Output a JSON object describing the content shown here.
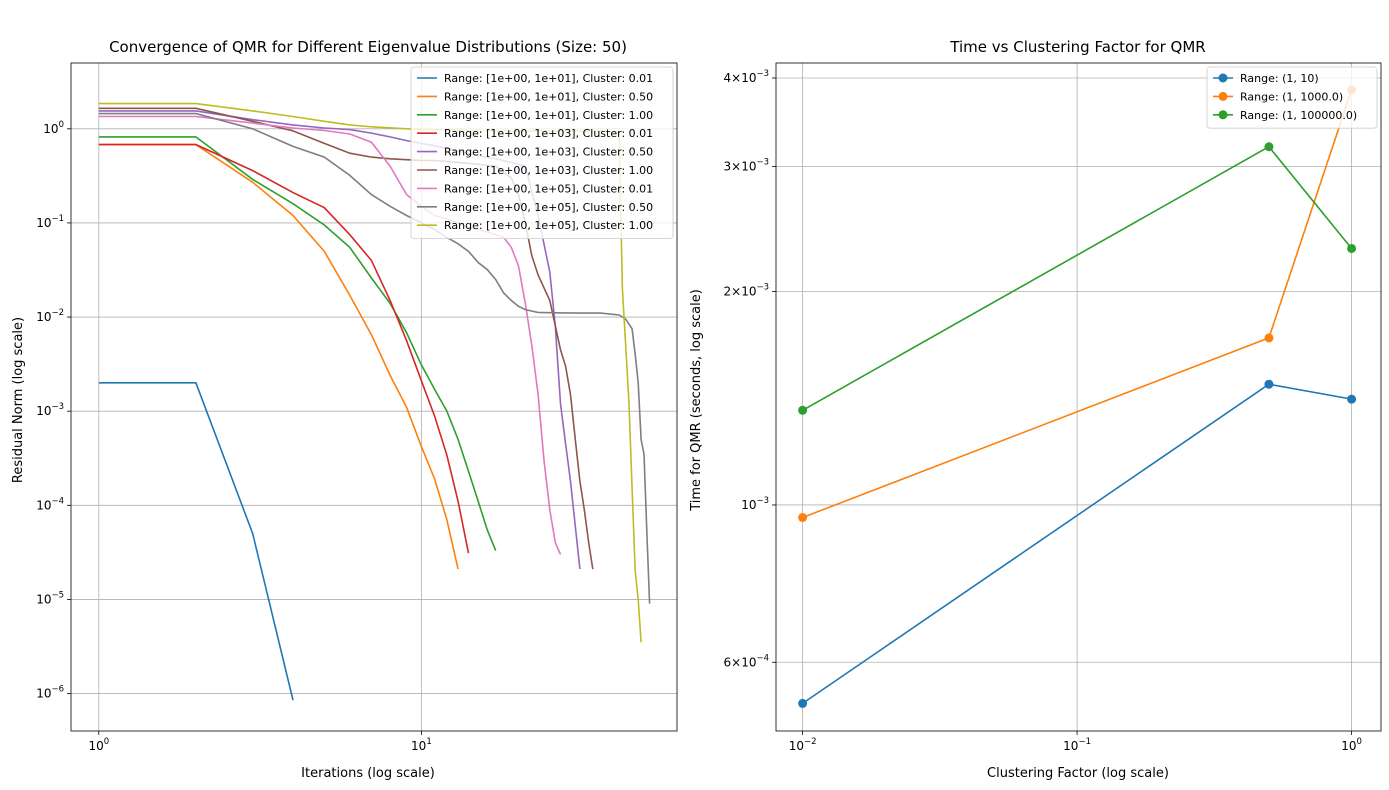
{
  "chart_data": [
    {
      "type": "line",
      "title": "Convergence of QMR for Different Eigenvalue Distributions (Size: 50)",
      "xlabel": "Iterations (log scale)",
      "ylabel": "Residual Norm (log scale)",
      "xscale": "log",
      "yscale": "log",
      "xlim": [
        0.82,
        62
      ],
      "ylim": [
        4e-07,
        5
      ],
      "xticks": [
        {
          "v": 1,
          "base": "10",
          "exp": "0"
        },
        {
          "v": 10,
          "base": "10",
          "exp": "1"
        }
      ],
      "yticks": [
        {
          "v": 1e-06,
          "base": "10",
          "exp": "−6"
        },
        {
          "v": 1e-05,
          "base": "10",
          "exp": "−5"
        },
        {
          "v": 0.0001,
          "base": "10",
          "exp": "−4"
        },
        {
          "v": 0.001,
          "base": "10",
          "exp": "−3"
        },
        {
          "v": 0.01,
          "base": "10",
          "exp": "−2"
        },
        {
          "v": 0.1,
          "base": "10",
          "exp": "−1"
        },
        {
          "v": 1,
          "base": "10",
          "exp": "0"
        }
      ],
      "grid": true,
      "legend_position": "top-right",
      "series": [
        {
          "name": "Range: [1e+00, 1e+01], Cluster: 0.01",
          "color": "#1f77b4",
          "x": [
            0,
            1,
            2,
            3
          ],
          "y": [
            0.002,
            0.002,
            5e-05,
            8.5e-07
          ]
        },
        {
          "name": "Range: [1e+00, 1e+01], Cluster: 0.50",
          "color": "#ff7f0e",
          "x": [
            0,
            1,
            2,
            3,
            4,
            5,
            6,
            7,
            8,
            9,
            10,
            11,
            12
          ],
          "y": [
            0.68,
            0.68,
            0.27,
            0.12,
            0.05,
            0.017,
            0.0065,
            0.0024,
            0.0011,
            0.00042,
            0.00019,
            7e-05,
            2.1e-05
          ]
        },
        {
          "name": "Range: [1e+00, 1e+01], Cluster: 1.00",
          "color": "#2ca02c",
          "x": [
            0,
            1,
            2,
            3,
            4,
            5,
            6,
            7,
            8,
            9,
            10,
            11,
            12,
            13,
            14,
            15,
            16
          ],
          "y": [
            0.82,
            0.82,
            0.29,
            0.16,
            0.095,
            0.055,
            0.026,
            0.014,
            0.0068,
            0.0031,
            0.0017,
            0.001,
            0.0005,
            0.00023,
            0.00011,
            5.5e-05,
            3.3e-05
          ]
        },
        {
          "name": "Range: [1e+00, 1e+03], Cluster: 0.01",
          "color": "#d62728",
          "x": [
            0,
            1,
            2,
            3,
            4,
            5,
            6,
            7,
            8,
            9,
            10,
            11,
            12,
            13
          ],
          "y": [
            0.68,
            0.68,
            0.36,
            0.21,
            0.145,
            0.075,
            0.04,
            0.015,
            0.0056,
            0.0021,
            0.00088,
            0.00034,
            0.00011,
            3.1e-05
          ]
        },
        {
          "name": "Range: [1e+00, 1e+03], Cluster: 0.50",
          "color": "#9467bd",
          "x": [
            0,
            1,
            2,
            3,
            4,
            5,
            6,
            7,
            8,
            9,
            10,
            11,
            12,
            14,
            16,
            18,
            20,
            22,
            24,
            25,
            26,
            27,
            28,
            29,
            30
          ],
          "y": [
            1.55,
            1.55,
            1.25,
            1.1,
            1.02,
            0.98,
            0.9,
            0.82,
            0.75,
            0.7,
            0.66,
            0.62,
            0.58,
            0.52,
            0.48,
            0.44,
            0.4,
            0.12,
            0.03,
            0.008,
            0.0012,
            0.00045,
            0.00018,
            6e-05,
            2.1e-05
          ]
        },
        {
          "name": "Range: [1e+00, 1e+03], Cluster: 1.00",
          "color": "#8c564b",
          "x": [
            0,
            1,
            2,
            3,
            4,
            5,
            6,
            7,
            8,
            9,
            10,
            11,
            12,
            14,
            16,
            18,
            19,
            20,
            21,
            22,
            24,
            26,
            27,
            28,
            29,
            30,
            31,
            32,
            33
          ],
          "y": [
            1.65,
            1.65,
            1.2,
            0.95,
            0.7,
            0.55,
            0.5,
            0.48,
            0.47,
            0.46,
            0.46,
            0.45,
            0.44,
            0.42,
            0.4,
            0.3,
            0.2,
            0.1,
            0.045,
            0.028,
            0.015,
            0.0045,
            0.003,
            0.0015,
            0.0005,
            0.00018,
            9e-05,
            4e-05,
            2.1e-05
          ]
        },
        {
          "name": "Range: [1e+00, 1e+05], Cluster: 0.01",
          "color": "#e377c2",
          "x": [
            0,
            1,
            2,
            3,
            4,
            5,
            6,
            7,
            8,
            9,
            10,
            11,
            12,
            13,
            14,
            15,
            16,
            17,
            18,
            19,
            20,
            21,
            22,
            23,
            24,
            25,
            26
          ],
          "y": [
            1.35,
            1.35,
            1.15,
            1.02,
            0.96,
            0.88,
            0.72,
            0.4,
            0.2,
            0.15,
            0.12,
            0.11,
            0.1,
            0.09,
            0.085,
            0.08,
            0.075,
            0.07,
            0.055,
            0.035,
            0.014,
            0.005,
            0.0015,
            0.0003,
            9e-05,
            4e-05,
            3e-05
          ]
        },
        {
          "name": "Range: [1e+00, 1e+05], Cluster: 0.50",
          "color": "#7f7f7f",
          "x": [
            0,
            1,
            2,
            3,
            4,
            5,
            6,
            7,
            8,
            9,
            10,
            11,
            12,
            13,
            14,
            15,
            16,
            17,
            18,
            19,
            20,
            22,
            25,
            30,
            35,
            40,
            42,
            44,
            45,
            46,
            47,
            48,
            49,
            50
          ],
          "y": [
            1.45,
            1.45,
            1.0,
            0.65,
            0.5,
            0.32,
            0.2,
            0.15,
            0.12,
            0.1,
            0.085,
            0.07,
            0.06,
            0.05,
            0.038,
            0.032,
            0.025,
            0.018,
            0.015,
            0.013,
            0.012,
            0.0112,
            0.0111,
            0.011,
            0.011,
            0.0105,
            0.0095,
            0.0075,
            0.004,
            0.002,
            0.0005,
            0.00035,
            5e-05,
            9e-06
          ]
        },
        {
          "name": "Range: [1e+00, 1e+05], Cluster: 1.00",
          "color": "#bcbd22",
          "x": [
            0,
            1,
            2,
            3,
            4,
            5,
            6,
            8,
            10,
            15,
            20,
            25,
            30,
            35,
            38,
            40,
            41,
            42,
            43,
            44,
            45,
            46,
            47
          ],
          "y": [
            1.85,
            1.85,
            1.55,
            1.35,
            1.2,
            1.1,
            1.05,
            1.0,
            0.98,
            0.95,
            0.95,
            0.95,
            0.95,
            0.95,
            0.92,
            0.9,
            0.02,
            0.005,
            0.0012,
            0.00015,
            2e-05,
            1e-05,
            3.5e-06
          ]
        }
      ]
    },
    {
      "type": "line",
      "title": "Time vs Clustering Factor for QMR",
      "xlabel": "Clustering Factor (log scale)",
      "ylabel": "Time for QMR (seconds, log scale)",
      "xscale": "log",
      "yscale": "log",
      "xlim": [
        0.008,
        1.28
      ],
      "ylim": [
        0.00048,
        0.0042
      ],
      "xticks": [
        {
          "v": 0.01,
          "base": "10",
          "exp": "−2"
        },
        {
          "v": 0.1,
          "base": "10",
          "exp": "−1"
        },
        {
          "v": 1,
          "base": "10",
          "exp": "0"
        }
      ],
      "yticks": [
        {
          "v": 0.0006,
          "base": "6×10",
          "exp": "−4"
        },
        {
          "v": 0.001,
          "base": "10",
          "exp": "−3"
        },
        {
          "v": 0.002,
          "base": "2×10",
          "exp": "−3"
        },
        {
          "v": 0.003,
          "base": "3×10",
          "exp": "−3"
        },
        {
          "v": 0.004,
          "base": "4×10",
          "exp": "−3"
        }
      ],
      "grid": true,
      "legend_position": "top-right",
      "series": [
        {
          "name": "Range: (1, 10)",
          "color": "#1f77b4",
          "x": [
            0.01,
            0.5,
            1.0
          ],
          "y": [
            0.000525,
            0.00148,
            0.00141
          ]
        },
        {
          "name": "Range: (1, 1000.0)",
          "color": "#ff7f0e",
          "x": [
            0.01,
            0.5,
            1.0
          ],
          "y": [
            0.00096,
            0.00172,
            0.00385
          ]
        },
        {
          "name": "Range: (1, 100000.0)",
          "color": "#2ca02c",
          "x": [
            0.01,
            0.5,
            1.0
          ],
          "y": [
            0.00136,
            0.0032,
            0.0023
          ]
        }
      ]
    }
  ]
}
